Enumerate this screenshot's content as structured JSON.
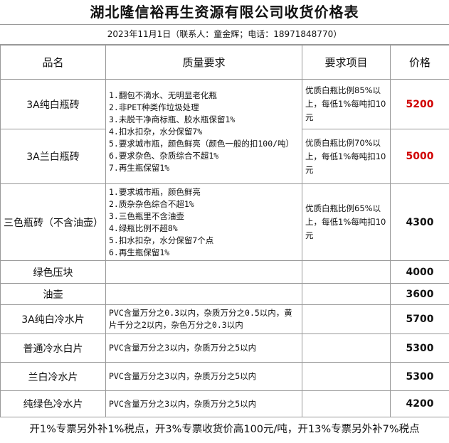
{
  "header": {
    "title": "湖北隆信裕再生资源有限公司收货价格表",
    "subtitle": "2023年11月1日（联系人：童金辉；电话：18971848770）"
  },
  "table": {
    "columns": [
      "品名",
      "质量要求",
      "要求项目",
      "价格"
    ],
    "rows": [
      {
        "name": "3A纯白瓶砖",
        "quality": [
          "1.翻包不滴水、无明显老化瓶",
          "2.非PET种类作垃圾处理",
          "3.未脱干净商标瓶、胶水瓶保留1%",
          "4.扣水扣杂，水分保留7%",
          "5.要求城市瓶，颜色鲜亮（颜色一般的扣100/吨）",
          "6.要求杂色、杂质综合不超1%",
          "7.再生瓶保留1%"
        ],
        "requirement": "优质白瓶比例85%以上，每低1%每吨扣10元",
        "price": "5200"
      },
      {
        "name": "3A兰白瓶砖",
        "requirement": "优质白瓶比例70%以上，每低1%每吨扣10元",
        "price": "5000"
      },
      {
        "name": "三色瓶砖（不含油壶）",
        "quality": [
          "1.要求城市瓶，颜色鲜亮",
          "2.质杂杂色综合不超1%",
          "3.三色瓶里不含油壶",
          "4.绿瓶比例不超8%",
          "5.扣水扣杂，水分保留7个点",
          "6.再生瓶保留1%"
        ],
        "requirement": "优质白瓶比例65%以上，每低1%每吨扣10元",
        "price": "4300"
      },
      {
        "name": "绿色压块",
        "price": "4000"
      },
      {
        "name": "油壶",
        "price": "3600"
      },
      {
        "name": "3A纯白冷水片",
        "quality": [
          "PVC含量万分之0.3以内，杂质万分之0.5以内，黄片千分之2以内，杂色万分之0.3以内"
        ],
        "price": "5700"
      },
      {
        "name": "普通冷水白片",
        "quality": [
          "PVC含量万分之3以内，杂质万分之5以内"
        ],
        "price": "5300"
      },
      {
        "name": "兰白冷水片",
        "quality": [
          "PVC含量万分之3以内，杂质万分之5以内"
        ],
        "price": "5300"
      },
      {
        "name": "纯绿色冷水片",
        "quality": [
          "PVC含量万分之3以内，杂质万分之5以内"
        ],
        "price": "4200"
      }
    ]
  },
  "footer": "开1%专票另外补1%税点，开3%专票收货价高100元/吨，开13%专票另外补7%税点"
}
